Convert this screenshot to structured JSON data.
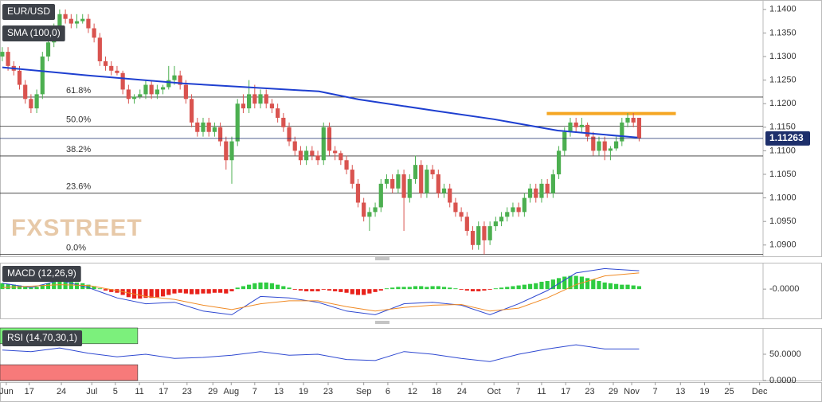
{
  "chart_data": [
    {
      "type": "candlestick",
      "title": "EUR/USD",
      "watermark": "FXSTREET",
      "xlim": [
        -0.4,
        132.6
      ],
      "xticks": [
        {
          "value": 0.7,
          "label": "Jun"
        },
        {
          "value": 4.7,
          "label": "17"
        },
        {
          "value": 10.3,
          "label": "24"
        },
        {
          "value": 15.6,
          "label": "Jul"
        },
        {
          "value": 19.7,
          "label": "5"
        },
        {
          "value": 23.9,
          "label": "11"
        },
        {
          "value": 28.1,
          "label": "17"
        },
        {
          "value": 32.2,
          "label": "23"
        },
        {
          "value": 36.7,
          "label": "29"
        },
        {
          "value": 39.9,
          "label": "Aug"
        },
        {
          "value": 44,
          "label": "7"
        },
        {
          "value": 48.2,
          "label": "13"
        },
        {
          "value": 52.5,
          "label": "19"
        },
        {
          "value": 56.8,
          "label": "23"
        },
        {
          "value": 63,
          "label": "Sep"
        },
        {
          "value": 67.2,
          "label": "6"
        },
        {
          "value": 71.5,
          "label": "12"
        },
        {
          "value": 75.7,
          "label": "18"
        },
        {
          "value": 80.1,
          "label": "24"
        },
        {
          "value": 85.7,
          "label": "Oct"
        },
        {
          "value": 89.9,
          "label": "7"
        },
        {
          "value": 94,
          "label": "11"
        },
        {
          "value": 98.2,
          "label": "17"
        },
        {
          "value": 102.4,
          "label": "23"
        },
        {
          "value": 106.5,
          "label": "29"
        },
        {
          "value": 109.7,
          "label": "Nov"
        },
        {
          "value": 113.8,
          "label": "7"
        },
        {
          "value": 118.2,
          "label": "13"
        },
        {
          "value": 122.4,
          "label": "19"
        },
        {
          "value": 126.7,
          "label": "25"
        },
        {
          "value": 132,
          "label": "Dec"
        }
      ],
      "ylim": [
        1.0876,
        1.142
      ],
      "yticks": [
        {
          "value": 1.09,
          "label": "1.0900"
        },
        {
          "value": 1.095,
          "label": "1.0950"
        },
        {
          "value": 1.1,
          "label": "1.1000"
        },
        {
          "value": 1.105,
          "label": "1.1050"
        },
        {
          "value": 1.11,
          "label": "1.1100"
        },
        {
          "value": 1.115,
          "label": "1.1150"
        },
        {
          "value": 1.12,
          "label": "1.1200"
        },
        {
          "value": 1.125,
          "label": "1.1250"
        },
        {
          "value": 1.13,
          "label": "1.1300"
        },
        {
          "value": 1.135,
          "label": "1.1350"
        },
        {
          "value": 1.14,
          "label": "1.1400"
        }
      ],
      "up_color": "#4caf50",
      "down_color": "#d9534f",
      "candles": [
        [
          1.13,
          1.132,
          1.129,
          1.131
        ],
        [
          1.131,
          1.132,
          1.127,
          1.128
        ],
        [
          1.128,
          1.129,
          1.126,
          1.127
        ],
        [
          1.127,
          1.128,
          1.123,
          1.124
        ],
        [
          1.124,
          1.125,
          1.12,
          1.121
        ],
        [
          1.121,
          1.122,
          1.118,
          1.119
        ],
        [
          1.119,
          1.123,
          1.118,
          1.122
        ],
        [
          1.122,
          1.131,
          1.121,
          1.13
        ],
        [
          1.13,
          1.134,
          1.129,
          1.133
        ],
        [
          1.133,
          1.137,
          1.132,
          1.136
        ],
        [
          1.136,
          1.14,
          1.135,
          1.139
        ],
        [
          1.139,
          1.14,
          1.137,
          1.138
        ],
        [
          1.138,
          1.139,
          1.136,
          1.137
        ],
        [
          1.137,
          1.139,
          1.136,
          1.1375
        ],
        [
          1.1375,
          1.139,
          1.137,
          1.138
        ],
        [
          1.138,
          1.139,
          1.135,
          1.136
        ],
        [
          1.136,
          1.137,
          1.133,
          1.134
        ],
        [
          1.134,
          1.135,
          1.128,
          1.129
        ],
        [
          1.129,
          1.13,
          1.127,
          1.128
        ],
        [
          1.128,
          1.129,
          1.126,
          1.127
        ],
        [
          1.127,
          1.128,
          1.126,
          1.1265
        ],
        [
          1.1265,
          1.127,
          1.122,
          1.123
        ],
        [
          1.123,
          1.124,
          1.12,
          1.121
        ],
        [
          1.121,
          1.122,
          1.12,
          1.1215
        ],
        [
          1.1215,
          1.123,
          1.121,
          1.122
        ],
        [
          1.122,
          1.125,
          1.121,
          1.124
        ],
        [
          1.124,
          1.125,
          1.121,
          1.122
        ],
        [
          1.122,
          1.124,
          1.121,
          1.123
        ],
        [
          1.123,
          1.124,
          1.122,
          1.1235
        ],
        [
          1.1235,
          1.128,
          1.123,
          1.125
        ],
        [
          1.125,
          1.128,
          1.124,
          1.126
        ],
        [
          1.126,
          1.127,
          1.123,
          1.124
        ],
        [
          1.124,
          1.125,
          1.12,
          1.121
        ],
        [
          1.121,
          1.122,
          1.115,
          1.116
        ],
        [
          1.116,
          1.117,
          1.113,
          1.114
        ],
        [
          1.114,
          1.117,
          1.113,
          1.116
        ],
        [
          1.116,
          1.117,
          1.113,
          1.114
        ],
        [
          1.114,
          1.116,
          1.113,
          1.115
        ],
        [
          1.115,
          1.116,
          1.111,
          1.112
        ],
        [
          1.112,
          1.113,
          1.106,
          1.108
        ],
        [
          1.108,
          1.113,
          1.103,
          1.112
        ],
        [
          1.112,
          1.121,
          1.111,
          1.12
        ],
        [
          1.12,
          1.122,
          1.118,
          1.119
        ],
        [
          1.119,
          1.125,
          1.118,
          1.122
        ],
        [
          1.122,
          1.124,
          1.119,
          1.12
        ],
        [
          1.12,
          1.123,
          1.119,
          1.122
        ],
        [
          1.122,
          1.123,
          1.119,
          1.12
        ],
        [
          1.12,
          1.121,
          1.118,
          1.119
        ],
        [
          1.119,
          1.12,
          1.116,
          1.117
        ],
        [
          1.117,
          1.118,
          1.114,
          1.115
        ],
        [
          1.115,
          1.116,
          1.111,
          1.112
        ],
        [
          1.112,
          1.113,
          1.109,
          1.11
        ],
        [
          1.11,
          1.111,
          1.107,
          1.108
        ],
        [
          1.108,
          1.111,
          1.107,
          1.11
        ],
        [
          1.11,
          1.111,
          1.108,
          1.109
        ],
        [
          1.109,
          1.11,
          1.107,
          1.108
        ],
        [
          1.108,
          1.116,
          1.107,
          1.115
        ],
        [
          1.115,
          1.116,
          1.109,
          1.11
        ],
        [
          1.11,
          1.111,
          1.108,
          1.1095
        ],
        [
          1.1095,
          1.11,
          1.107,
          1.108
        ],
        [
          1.108,
          1.109,
          1.105,
          1.106
        ],
        [
          1.106,
          1.107,
          1.102,
          1.103
        ],
        [
          1.103,
          1.104,
          1.098,
          1.099
        ],
        [
          1.099,
          1.1,
          1.095,
          1.096
        ],
        [
          1.096,
          1.098,
          1.093,
          1.097
        ],
        [
          1.097,
          1.099,
          1.096,
          1.098
        ],
        [
          1.098,
          1.104,
          1.097,
          1.103
        ],
        [
          1.103,
          1.105,
          1.102,
          1.104
        ],
        [
          1.104,
          1.105,
          1.101,
          1.102
        ],
        [
          1.102,
          1.106,
          1.101,
          1.105
        ],
        [
          1.105,
          1.106,
          1.093,
          1.1
        ],
        [
          1.1,
          1.105,
          1.099,
          1.104
        ],
        [
          1.104,
          1.109,
          1.103,
          1.107
        ],
        [
          1.107,
          1.108,
          1.1,
          1.101
        ],
        [
          1.101,
          1.107,
          1.1,
          1.106
        ],
        [
          1.106,
          1.107,
          1.104,
          1.105
        ],
        [
          1.105,
          1.106,
          1.1,
          1.101
        ],
        [
          1.101,
          1.103,
          1.1,
          1.102
        ],
        [
          1.102,
          1.103,
          1.098,
          1.099
        ],
        [
          1.099,
          1.1,
          1.096,
          1.097
        ],
        [
          1.097,
          1.098,
          1.095,
          1.096
        ],
        [
          1.096,
          1.097,
          1.092,
          1.093
        ],
        [
          1.093,
          1.094,
          1.089,
          1.09
        ],
        [
          1.09,
          1.095,
          1.089,
          1.094
        ],
        [
          1.094,
          1.095,
          1.088,
          1.091
        ],
        [
          1.091,
          1.095,
          1.09,
          1.094
        ],
        [
          1.094,
          1.096,
          1.093,
          1.095
        ],
        [
          1.095,
          1.097,
          1.094,
          1.096
        ],
        [
          1.096,
          1.098,
          1.095,
          1.097
        ],
        [
          1.097,
          1.099,
          1.096,
          1.098
        ],
        [
          1.098,
          1.099,
          1.096,
          1.097
        ],
        [
          1.097,
          1.101,
          1.096,
          1.1
        ],
        [
          1.1,
          1.103,
          1.099,
          1.102
        ],
        [
          1.102,
          1.103,
          1.099,
          1.1
        ],
        [
          1.1,
          1.104,
          1.099,
          1.103
        ],
        [
          1.103,
          1.104,
          1.1,
          1.101
        ],
        [
          1.101,
          1.106,
          1.1,
          1.105
        ],
        [
          1.105,
          1.111,
          1.104,
          1.11
        ],
        [
          1.11,
          1.115,
          1.109,
          1.114
        ],
        [
          1.114,
          1.117,
          1.113,
          1.116
        ],
        [
          1.116,
          1.117,
          1.114,
          1.115
        ],
        [
          1.115,
          1.117,
          1.114,
          1.1155
        ],
        [
          1.1155,
          1.116,
          1.112,
          1.113
        ],
        [
          1.113,
          1.114,
          1.109,
          1.11
        ],
        [
          1.11,
          1.113,
          1.109,
          1.112
        ],
        [
          1.112,
          1.113,
          1.108,
          1.11
        ],
        [
          1.11,
          1.111,
          1.108,
          1.1105
        ],
        [
          1.1105,
          1.113,
          1.11,
          1.112
        ],
        [
          1.112,
          1.117,
          1.111,
          1.116
        ],
        [
          1.116,
          1.118,
          1.115,
          1.117
        ],
        [
          1.117,
          1.118,
          1.115,
          1.116
        ],
        [
          1.117,
          1.117,
          1.112,
          1.1126
        ]
      ],
      "sma": {
        "name": "SMA (100,0)",
        "color": "#1e3fd0",
        "x": [
          0,
          14.9,
          31.5,
          55.2,
          62.1,
          76,
          85.7,
          96.8,
          110.7
        ],
        "values": [
          1.1277,
          1.126,
          1.1243,
          1.1226,
          1.1209,
          1.1184,
          1.1167,
          1.1143,
          1.1128
        ]
      },
      "levels": [
        {
          "label": "61.8%",
          "value": 1.1214
        },
        {
          "label": "50.0%",
          "value": 1.1152
        },
        {
          "label": "38.2%",
          "value": 1.1089
        },
        {
          "label": "23.6%",
          "value": 1.101
        },
        {
          "label": "0.0%",
          "value": 1.088
        }
      ],
      "resistance": {
        "value": 1.1179,
        "x": [
          94.9,
          117.4
        ],
        "color": "#f5a623"
      },
      "last_price": 1.11263
    },
    {
      "type": "macd",
      "title": "MACD (12,26,9)",
      "ylim": [
        -0.004,
        0.0036
      ],
      "yticks": [
        {
          "value": 0,
          "label": "-0.0000"
        }
      ],
      "histogram": {
        "up_color": "#2ecc40",
        "down_color": "#e8221b",
        "values": [
          0.0008,
          0.0007,
          0.0006,
          0.0005,
          0.0004,
          0.0003,
          0.0003,
          0.0006,
          0.0008,
          0.001,
          0.0011,
          0.0011,
          0.001,
          0.0009,
          0.0008,
          0.0006,
          0.0004,
          0.0001,
          -0.0002,
          -0.0004,
          -0.0005,
          -0.0008,
          -0.0011,
          -0.0013,
          -0.0013,
          -0.0012,
          -0.0012,
          -0.0011,
          -0.001,
          -0.0008,
          -0.0006,
          -0.0005,
          -0.0006,
          -0.0007,
          -0.0007,
          -0.0006,
          -0.0006,
          -0.0005,
          -0.0005,
          -0.0006,
          -0.0003,
          0.0002,
          0.0004,
          0.0006,
          0.0008,
          0.0009,
          0.0009,
          0.0008,
          0.0006,
          0.0004,
          0.0002,
          -0.0001,
          -0.0002,
          -0.0003,
          -0.0003,
          -0.0003,
          -0.0001,
          -0.0002,
          -0.0003,
          -0.0004,
          -0.0005,
          -0.0007,
          -0.0008,
          -0.0008,
          -0.0006,
          -0.0004,
          -0.0002,
          0.0001,
          0.0002,
          0.0003,
          0.0003,
          0.0003,
          0.0004,
          0.0004,
          0.0003,
          0.0004,
          0.0004,
          0.0003,
          0.0002,
          0.0001,
          -0.0001,
          -0.0002,
          -0.0003,
          -0.0003,
          -0.0002,
          -0.0001,
          0.0001,
          0.0002,
          0.0003,
          0.0004,
          0.0005,
          0.0006,
          0.0007,
          0.0008,
          0.001,
          0.0011,
          0.0013,
          0.0015,
          0.0017,
          0.0018,
          0.0018,
          0.0017,
          0.0015,
          0.0013,
          0.0011,
          0.0009,
          0.0008,
          0.0007,
          0.0006,
          0.0006,
          0.0005,
          0.0004
        ]
      },
      "x": [
        0,
        5,
        10,
        15,
        20,
        25,
        30,
        35,
        40,
        45,
        50,
        55,
        60,
        65,
        70,
        75,
        80,
        85,
        90,
        95,
        100,
        105,
        111
      ],
      "series": [
        {
          "color": "#2f49d1",
          "values": [
            0.0008,
            0.0002,
            0.0012,
            0.0002,
            -0.0012,
            -0.002,
            -0.0018,
            -0.003,
            -0.0035,
            -0.001,
            -0.0012,
            -0.0018,
            -0.003,
            -0.0035,
            -0.002,
            -0.0018,
            -0.0022,
            -0.0035,
            -0.002,
            -0.0002,
            0.0022,
            0.0028,
            0.0025
          ]
        },
        {
          "color": "#f08a24",
          "values": [
            0.0002,
            0.0004,
            0.0006,
            0.0005,
            -0.0002,
            -0.001,
            -0.0014,
            -0.0022,
            -0.0028,
            -0.002,
            -0.0016,
            -0.0016,
            -0.0024,
            -0.003,
            -0.0025,
            -0.0022,
            -0.0021,
            -0.003,
            -0.0026,
            -0.0012,
            0.0006,
            0.0018,
            0.0022
          ]
        }
      ]
    },
    {
      "type": "rsi",
      "title": "RSI (14,70,30,1)",
      "ylim": [
        0,
        100
      ],
      "yticks": [
        {
          "value": 50,
          "label": "50.0000"
        },
        {
          "value": 0,
          "label": "0.0000"
        }
      ],
      "overbought": 70,
      "oversold": 30,
      "overbought_color": "#7cf07c",
      "oversold_color": "#f77a7a",
      "x": [
        0,
        5,
        10,
        15,
        20,
        25,
        30,
        35,
        40,
        45,
        50,
        55,
        60,
        65,
        70,
        75,
        80,
        85,
        90,
        95,
        100,
        105,
        111
      ],
      "series": [
        {
          "color": "#2f49d1",
          "values": [
            58,
            55,
            62,
            52,
            45,
            50,
            42,
            44,
            48,
            55,
            48,
            50,
            40,
            38,
            55,
            50,
            42,
            36,
            50,
            60,
            68,
            60,
            60
          ]
        }
      ]
    }
  ]
}
